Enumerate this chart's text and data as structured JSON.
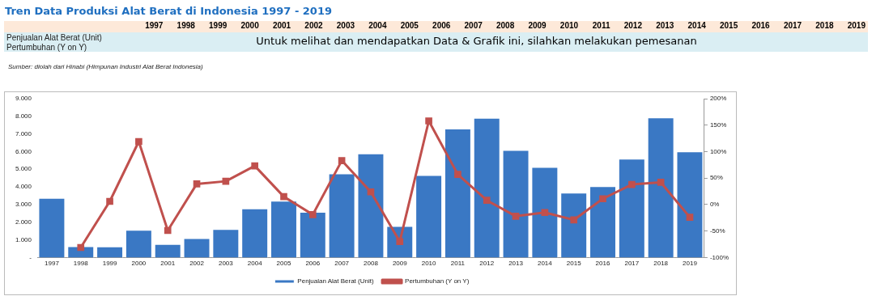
{
  "chart_data": {
    "type": "bar",
    "title": "Tren Data Produksi Alat Berat di Indonesia 1997 - 2019",
    "categories": [
      "1997",
      "1998",
      "1999",
      "2000",
      "2001",
      "2002",
      "2003",
      "2004",
      "2005",
      "2006",
      "2007",
      "2008",
      "2009",
      "2010",
      "2011",
      "2012",
      "2013",
      "2014",
      "2015",
      "2016",
      "2017",
      "2018",
      "2019"
    ],
    "series": [
      {
        "name": "Penjualan Alat Berat (Unit)",
        "color": "#3a78c4",
        "values": [
          3370,
          640,
          620,
          1570,
          760,
          1100,
          1610,
          2780,
          3210,
          2580,
          4760,
          5900,
          1780,
          4670,
          7310,
          7910,
          6090,
          5130,
          3670,
          4040,
          5600,
          7940,
          6010
        ]
      },
      {
        "name": "Pertumbuhan (Y on Y)",
        "type": "line",
        "axis": "y2",
        "color": "#c0504d",
        "values": [
          null,
          -81,
          6,
          119,
          -49,
          39,
          44,
          73,
          15,
          -19,
          83,
          24,
          -70,
          158,
          57,
          8,
          -22,
          -15,
          -29,
          11,
          38,
          42,
          -24
        ]
      }
    ],
    "ylim": [
      0,
      9000
    ],
    "yticks": [
      {
        "value": 0,
        "label": "-"
      },
      {
        "value": 1000,
        "label": "1.000"
      },
      {
        "value": 2000,
        "label": "2.000"
      },
      {
        "value": 3000,
        "label": "3.000"
      },
      {
        "value": 4000,
        "label": "4.000"
      },
      {
        "value": 5000,
        "label": "5.000"
      },
      {
        "value": 6000,
        "label": "6.000"
      },
      {
        "value": 7000,
        "label": "7.000"
      },
      {
        "value": 8000,
        "label": "8.000"
      },
      {
        "value": 9000,
        "label": "9.000"
      }
    ],
    "y2lim": [
      -100,
      200
    ],
    "y2ticks": [
      {
        "value": -100,
        "label": "-100%"
      },
      {
        "value": -50,
        "label": "-50%"
      },
      {
        "value": 0,
        "label": "0%"
      },
      {
        "value": 50,
        "label": "50%"
      },
      {
        "value": 100,
        "label": "100%"
      },
      {
        "value": 150,
        "label": "150%"
      },
      {
        "value": 200,
        "label": "200%"
      }
    ],
    "annotations": [
      "Untuk melihat dan mendapatkan Data & Grafik ini, silahkan melakukan pemesanan",
      "Sumber: diolah dari Hinabi (Himpunan Industri Alat Berat Indonesia)"
    ],
    "legend": "bottom",
    "grid": false,
    "marker": "square",
    "line_style": "solid"
  }
}
